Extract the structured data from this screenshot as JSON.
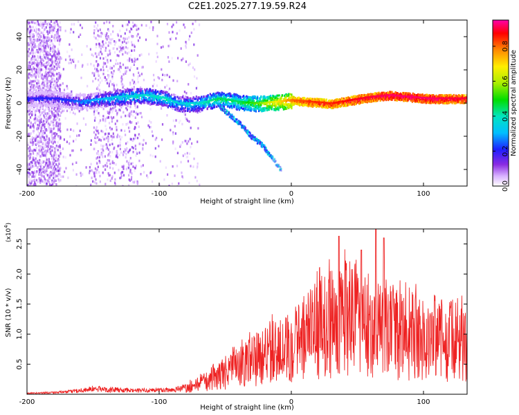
{
  "title": "C2E1.2025.277.19.59.R24",
  "chart_data": [
    {
      "type": "heatmap",
      "title": "C2E1.2025.277.19.59.R24",
      "xlabel": "Height of straight line (km)",
      "ylabel": "Frequency (Hz)",
      "xlim": [
        -200,
        133
      ],
      "ylim": [
        -50,
        50
      ],
      "x_ticks": [
        -200,
        -100,
        0,
        100
      ],
      "y_ticks": [
        -40,
        -20,
        0,
        20,
        40
      ],
      "colorbar": {
        "label": "Normalized spectral amplitude",
        "range": [
          0,
          0.95
        ],
        "ticks": [
          0.0,
          0.2,
          0.4,
          0.6,
          0.8
        ]
      },
      "main_track": [
        {
          "x": -178,
          "freq": 3,
          "amp": 0.2
        },
        {
          "x": -160,
          "freq": 1,
          "amp": 0.25
        },
        {
          "x": -150,
          "freq": 2,
          "amp": 0.3
        },
        {
          "x": -130,
          "freq": 4,
          "amp": 0.35
        },
        {
          "x": -110,
          "freq": 5,
          "amp": 0.38
        },
        {
          "x": -95,
          "freq": 3,
          "amp": 0.4
        },
        {
          "x": -85,
          "freq": 0,
          "amp": 0.35
        },
        {
          "x": -70,
          "freq": 0,
          "amp": 0.38
        },
        {
          "x": -55,
          "freq": 3,
          "amp": 0.45
        },
        {
          "x": -40,
          "freq": 1,
          "amp": 0.45
        },
        {
          "x": -25,
          "freq": 0,
          "amp": 0.55
        },
        {
          "x": -10,
          "freq": 1,
          "amp": 0.7
        },
        {
          "x": 0,
          "freq": 2,
          "amp": 0.8
        },
        {
          "x": 15,
          "freq": 1,
          "amp": 0.85
        },
        {
          "x": 30,
          "freq": 0,
          "amp": 0.85
        },
        {
          "x": 45,
          "freq": 2,
          "amp": 0.88
        },
        {
          "x": 60,
          "freq": 4,
          "amp": 0.9
        },
        {
          "x": 75,
          "freq": 5,
          "amp": 0.92
        },
        {
          "x": 90,
          "freq": 4,
          "amp": 0.92
        },
        {
          "x": 105,
          "freq": 3,
          "amp": 0.92
        },
        {
          "x": 120,
          "freq": 3,
          "amp": 0.9
        },
        {
          "x": 133,
          "freq": 3,
          "amp": 0.9
        }
      ],
      "secondary_track": [
        {
          "x": -55,
          "freq": -1
        },
        {
          "x": -45,
          "freq": -8
        },
        {
          "x": -38,
          "freq": -13
        },
        {
          "x": -30,
          "freq": -20
        },
        {
          "x": -22,
          "freq": -25
        },
        {
          "x": -8,
          "freq": -40
        }
      ]
    },
    {
      "type": "line",
      "xlabel": "Height of straight line (km)",
      "ylabel": "SNR (10 * v/v)",
      "y_multiplier": "(x10",
      "y_multiplier_exp": "4",
      "y_multiplier_close": ")",
      "xlim": [
        -200,
        133
      ],
      "ylim": [
        0,
        27500
      ],
      "x_ticks": [
        -200,
        -100,
        0,
        100
      ],
      "y_ticks": [
        0.5,
        1.0,
        1.5,
        2.0,
        2.5
      ],
      "series": [
        {
          "name": "SNR",
          "color": "#ee2222",
          "envelope": [
            {
              "x": -200,
              "value": 200
            },
            {
              "x": -170,
              "value": 500
            },
            {
              "x": -150,
              "value": 1200
            },
            {
              "x": -120,
              "value": 800
            },
            {
              "x": -90,
              "value": 1000
            },
            {
              "x": -80,
              "value": 1500
            },
            {
              "x": -65,
              "value": 3000
            },
            {
              "x": -50,
              "value": 5000
            },
            {
              "x": -40,
              "value": 6500
            },
            {
              "x": -30,
              "value": 8000
            },
            {
              "x": -15,
              "value": 10000
            },
            {
              "x": 0,
              "value": 12000
            },
            {
              "x": 10,
              "value": 14000
            },
            {
              "x": 20,
              "value": 16000
            },
            {
              "x": 30,
              "value": 17000
            },
            {
              "x": 40,
              "value": 19000
            },
            {
              "x": 50,
              "value": 18000
            },
            {
              "x": 60,
              "value": 16500
            },
            {
              "x": 70,
              "value": 15500
            },
            {
              "x": 80,
              "value": 14500
            },
            {
              "x": 90,
              "value": 14000
            },
            {
              "x": 100,
              "value": 13500
            },
            {
              "x": 110,
              "value": 13000
            },
            {
              "x": 120,
              "value": 13000
            },
            {
              "x": 133,
              "value": 14000
            }
          ],
          "peaks": [
            {
              "x": 36,
              "value": 26300
            },
            {
              "x": 53,
              "value": 24000
            },
            {
              "x": 64,
              "value": 27500
            },
            {
              "x": 70,
              "value": 26000
            }
          ]
        }
      ]
    }
  ]
}
